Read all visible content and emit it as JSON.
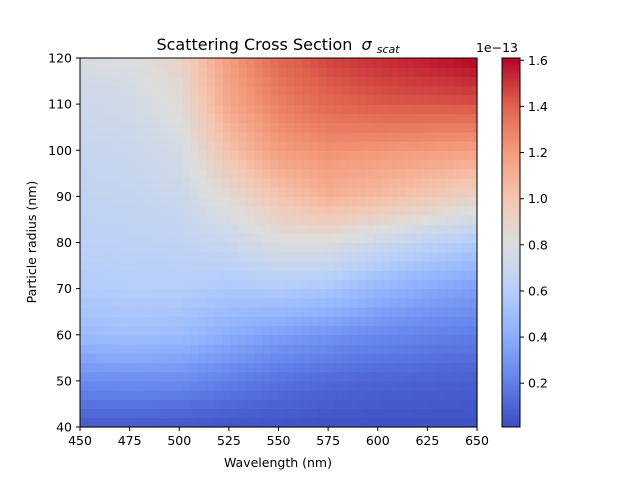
{
  "chart_data": {
    "type": "heatmap",
    "title": "Scattering Cross Section",
    "title_symbol": "σ",
    "title_subscript": "scat",
    "xlabel": "Wavelength (nm)",
    "ylabel": "Particle radius (nm)",
    "xlim": [
      450,
      650
    ],
    "ylim": [
      40,
      120
    ],
    "x_ticks": [
      450,
      475,
      500,
      525,
      550,
      575,
      600,
      625,
      650
    ],
    "y_ticks": [
      40,
      50,
      60,
      70,
      80,
      90,
      100,
      110,
      120
    ],
    "colormap": "coolwarm",
    "colorbar": {
      "exponent_label": "1e−13",
      "vmin": 0.01,
      "vmax": 1.61,
      "ticks": [
        0.2,
        0.4,
        0.6,
        0.8,
        1.0,
        1.2,
        1.4,
        1.6
      ],
      "tick_labels": [
        "0.2",
        "0.4",
        "0.6",
        "0.8",
        "1.0",
        "1.2",
        "1.4",
        "1.6"
      ]
    },
    "x": [
      450,
      475,
      500,
      525,
      550,
      575,
      600,
      625,
      650
    ],
    "y": [
      40,
      50,
      60,
      70,
      80,
      90,
      100,
      110,
      120
    ],
    "z": [
      [
        0.06,
        0.06,
        0.05,
        0.04,
        0.04,
        0.03,
        0.03,
        0.03,
        0.03
      ],
      [
        0.25,
        0.26,
        0.25,
        0.2,
        0.15,
        0.12,
        0.1,
        0.09,
        0.08
      ],
      [
        0.48,
        0.5,
        0.48,
        0.4,
        0.33,
        0.28,
        0.24,
        0.21,
        0.19
      ],
      [
        0.58,
        0.6,
        0.6,
        0.56,
        0.58,
        0.55,
        0.45,
        0.38,
        0.33
      ],
      [
        0.63,
        0.64,
        0.65,
        0.7,
        0.8,
        0.8,
        0.72,
        0.64,
        0.58
      ],
      [
        0.66,
        0.67,
        0.71,
        0.85,
        1.0,
        1.1,
        1.05,
        0.98,
        0.9
      ],
      [
        0.69,
        0.7,
        0.76,
        1.02,
        1.2,
        1.24,
        1.22,
        1.2,
        1.18
      ],
      [
        0.72,
        0.74,
        0.83,
        1.15,
        1.3,
        1.38,
        1.42,
        1.43,
        1.44
      ],
      [
        0.78,
        0.8,
        0.9,
        1.2,
        1.38,
        1.47,
        1.52,
        1.56,
        1.61
      ]
    ]
  }
}
